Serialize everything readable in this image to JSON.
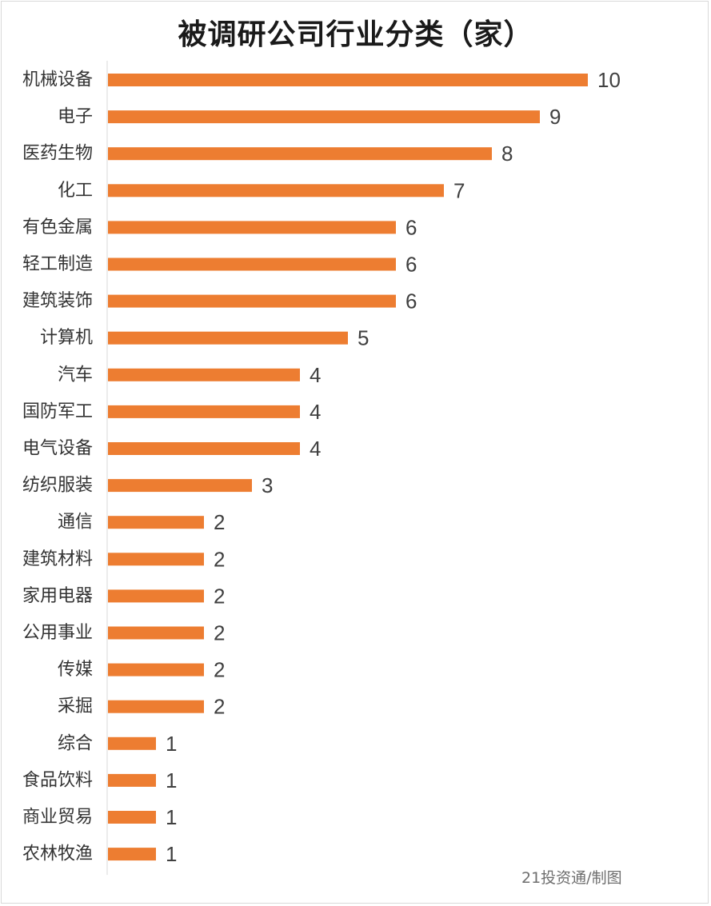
{
  "chart_data": {
    "type": "bar",
    "orientation": "horizontal",
    "title": "被调研公司行业分类（家）",
    "categories": [
      "机械设备",
      "电子",
      "医药生物",
      "化工",
      "有色金属",
      "轻工制造",
      "建筑装饰",
      "计算机",
      "汽车",
      "国防军工",
      "电气设备",
      "纺织服装",
      "通信",
      "建筑材料",
      "家用电器",
      "公用事业",
      "传媒",
      "采掘",
      "综合",
      "食品饮料",
      "商业贸易",
      "农林牧渔"
    ],
    "values": [
      10,
      9,
      8,
      7,
      6,
      6,
      6,
      5,
      4,
      4,
      4,
      3,
      2,
      2,
      2,
      2,
      2,
      2,
      1,
      1,
      1,
      1
    ],
    "xlim": [
      0,
      11
    ],
    "grid": false,
    "legend": "none",
    "data_labels": true
  },
  "colors": {
    "bar": "#ED7D31",
    "axis": "#d9d9d9"
  },
  "credit": "21投资通/制图"
}
